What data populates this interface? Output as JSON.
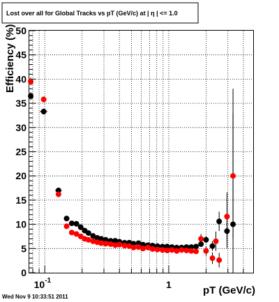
{
  "chart_data": {
    "type": "scatter",
    "title": "Lost over all for Global Tracks vs pT (GeV/c) at |  η | <= 1.0",
    "xlabel": "pT (GeV/c)",
    "ylabel": "Efficiency (%)",
    "x_scale": "log",
    "xlim": [
      0.075,
      4.8
    ],
    "ylim": [
      0,
      50
    ],
    "x_tick_labels": [
      {
        "value": 0.1,
        "base": "10",
        "exp": "-1"
      },
      {
        "value": 1,
        "base": "1",
        "exp": ""
      }
    ],
    "y_ticks": [
      0,
      5,
      10,
      15,
      20,
      25,
      30,
      35,
      40,
      45,
      50
    ],
    "grid": true,
    "series": [
      {
        "color": "#000000",
        "points": [
          {
            "x": 0.077,
            "y": 36.5,
            "xerr": 0.003,
            "yerr": 0.8
          },
          {
            "x": 0.098,
            "y": 33.3,
            "xerr": 0.007,
            "yerr": 0.6
          },
          {
            "x": 0.129,
            "y": 17.0,
            "xerr": 0.008,
            "yerr": 0.5
          },
          {
            "x": 0.15,
            "y": 11.2,
            "xerr": 0.005,
            "yerr": 0.4
          },
          {
            "x": 0.165,
            "y": 10.2,
            "xerr": 0.005,
            "yerr": 0.4
          },
          {
            "x": 0.18,
            "y": 10.1,
            "xerr": 0.005,
            "yerr": 0.4
          },
          {
            "x": 0.195,
            "y": 9.4,
            "xerr": 0.005,
            "yerr": 0.4
          },
          {
            "x": 0.21,
            "y": 8.7,
            "xerr": 0.005,
            "yerr": 0.3
          },
          {
            "x": 0.225,
            "y": 8.2,
            "xerr": 0.005,
            "yerr": 0.3
          },
          {
            "x": 0.245,
            "y": 7.6,
            "xerr": 0.006,
            "yerr": 0.3
          },
          {
            "x": 0.265,
            "y": 7.2,
            "xerr": 0.006,
            "yerr": 0.3
          },
          {
            "x": 0.285,
            "y": 7.0,
            "xerr": 0.006,
            "yerr": 0.3
          },
          {
            "x": 0.31,
            "y": 6.8,
            "xerr": 0.008,
            "yerr": 0.3
          },
          {
            "x": 0.34,
            "y": 6.6,
            "xerr": 0.008,
            "yerr": 0.3
          },
          {
            "x": 0.37,
            "y": 6.6,
            "xerr": 0.008,
            "yerr": 0.3
          },
          {
            "x": 0.4,
            "y": 6.4,
            "xerr": 0.01,
            "yerr": 0.3
          },
          {
            "x": 0.44,
            "y": 6.2,
            "xerr": 0.01,
            "yerr": 0.3
          },
          {
            "x": 0.48,
            "y": 6.2,
            "xerr": 0.01,
            "yerr": 0.3
          },
          {
            "x": 0.52,
            "y": 6.0,
            "xerr": 0.01,
            "yerr": 0.3
          },
          {
            "x": 0.57,
            "y": 6.1,
            "xerr": 0.012,
            "yerr": 0.3
          },
          {
            "x": 0.62,
            "y": 5.8,
            "xerr": 0.012,
            "yerr": 0.3
          },
          {
            "x": 0.68,
            "y": 5.7,
            "xerr": 0.014,
            "yerr": 0.3
          },
          {
            "x": 0.74,
            "y": 5.6,
            "xerr": 0.014,
            "yerr": 0.3
          },
          {
            "x": 0.81,
            "y": 5.5,
            "xerr": 0.016,
            "yerr": 0.3
          },
          {
            "x": 0.89,
            "y": 5.4,
            "xerr": 0.018,
            "yerr": 0.3
          },
          {
            "x": 0.97,
            "y": 5.4,
            "xerr": 0.02,
            "yerr": 0.3
          },
          {
            "x": 1.06,
            "y": 5.3,
            "xerr": 0.02,
            "yerr": 0.3
          },
          {
            "x": 1.16,
            "y": 5.2,
            "xerr": 0.024,
            "yerr": 0.3
          },
          {
            "x": 1.27,
            "y": 5.2,
            "xerr": 0.026,
            "yerr": 0.3
          },
          {
            "x": 1.39,
            "y": 5.3,
            "xerr": 0.03,
            "yerr": 0.3
          },
          {
            "x": 1.52,
            "y": 5.3,
            "xerr": 0.03,
            "yerr": 0.3
          },
          {
            "x": 1.66,
            "y": 5.4,
            "xerr": 0.034,
            "yerr": 0.3
          },
          {
            "x": 1.82,
            "y": 5.9,
            "xerr": 0.04,
            "yerr": 0.5
          },
          {
            "x": 2.0,
            "y": 6.8,
            "xerr": 0.05,
            "yerr": 0.7
          },
          {
            "x": 2.25,
            "y": 5.5,
            "xerr": 0.08,
            "yerr": 1.0
          },
          {
            "x": 2.55,
            "y": 10.6,
            "xerr": 0.1,
            "yerr": 2.0
          },
          {
            "x": 2.95,
            "y": 8.6,
            "xerr": 0.12,
            "yerr": 3.5
          },
          {
            "x": 3.3,
            "y": 10.0,
            "xerr": 0.12,
            "yerr": 28.0
          }
        ]
      },
      {
        "color": "#ff0000",
        "points": [
          {
            "x": 0.077,
            "y": 39.5,
            "xerr": 0.003,
            "yerr": 0.8
          },
          {
            "x": 0.098,
            "y": 35.8,
            "xerr": 0.003,
            "yerr": 0.6
          },
          {
            "x": 0.129,
            "y": 16.2,
            "xerr": 0.004,
            "yerr": 0.5
          },
          {
            "x": 0.15,
            "y": 9.6,
            "xerr": 0.004,
            "yerr": 0.4
          },
          {
            "x": 0.165,
            "y": 8.3,
            "xerr": 0.004,
            "yerr": 0.4
          },
          {
            "x": 0.18,
            "y": 8.0,
            "xerr": 0.004,
            "yerr": 0.3
          },
          {
            "x": 0.195,
            "y": 7.5,
            "xerr": 0.004,
            "yerr": 0.3
          },
          {
            "x": 0.21,
            "y": 7.0,
            "xerr": 0.004,
            "yerr": 0.3
          },
          {
            "x": 0.225,
            "y": 6.8,
            "xerr": 0.004,
            "yerr": 0.3
          },
          {
            "x": 0.245,
            "y": 6.5,
            "xerr": 0.005,
            "yerr": 0.3
          },
          {
            "x": 0.265,
            "y": 6.3,
            "xerr": 0.005,
            "yerr": 0.3
          },
          {
            "x": 0.285,
            "y": 6.1,
            "xerr": 0.005,
            "yerr": 0.3
          },
          {
            "x": 0.31,
            "y": 6.0,
            "xerr": 0.006,
            "yerr": 0.3
          },
          {
            "x": 0.34,
            "y": 5.9,
            "xerr": 0.006,
            "yerr": 0.3
          },
          {
            "x": 0.37,
            "y": 5.7,
            "xerr": 0.007,
            "yerr": 0.3
          },
          {
            "x": 0.4,
            "y": 5.8,
            "xerr": 0.008,
            "yerr": 0.3
          },
          {
            "x": 0.44,
            "y": 5.6,
            "xerr": 0.008,
            "yerr": 0.3
          },
          {
            "x": 0.48,
            "y": 5.5,
            "xerr": 0.009,
            "yerr": 0.3
          },
          {
            "x": 0.52,
            "y": 5.2,
            "xerr": 0.01,
            "yerr": 0.3
          },
          {
            "x": 0.57,
            "y": 5.3,
            "xerr": 0.011,
            "yerr": 0.3
          },
          {
            "x": 0.62,
            "y": 5.0,
            "xerr": 0.012,
            "yerr": 0.3
          },
          {
            "x": 0.68,
            "y": 5.2,
            "xerr": 0.013,
            "yerr": 0.3
          },
          {
            "x": 0.74,
            "y": 4.9,
            "xerr": 0.014,
            "yerr": 0.3
          },
          {
            "x": 0.81,
            "y": 4.8,
            "xerr": 0.015,
            "yerr": 0.3
          },
          {
            "x": 0.89,
            "y": 4.7,
            "xerr": 0.016,
            "yerr": 0.3
          },
          {
            "x": 0.97,
            "y": 4.6,
            "xerr": 0.018,
            "yerr": 0.3
          },
          {
            "x": 1.06,
            "y": 4.7,
            "xerr": 0.02,
            "yerr": 0.3
          },
          {
            "x": 1.16,
            "y": 4.5,
            "xerr": 0.022,
            "yerr": 0.3
          },
          {
            "x": 1.27,
            "y": 4.7,
            "xerr": 0.024,
            "yerr": 0.3
          },
          {
            "x": 1.39,
            "y": 4.6,
            "xerr": 0.026,
            "yerr": 0.3
          },
          {
            "x": 1.52,
            "y": 4.5,
            "xerr": 0.028,
            "yerr": 0.3
          },
          {
            "x": 1.66,
            "y": 4.4,
            "xerr": 0.032,
            "yerr": 0.4
          },
          {
            "x": 1.82,
            "y": 7.0,
            "xerr": 0.04,
            "yerr": 1.0
          },
          {
            "x": 2.0,
            "y": 4.5,
            "xerr": 0.05,
            "yerr": 1.0
          },
          {
            "x": 2.25,
            "y": 3.0,
            "xerr": 0.06,
            "yerr": 1.2
          },
          {
            "x": 2.4,
            "y": 6.5,
            "xerr": 0.06,
            "yerr": 2.0
          },
          {
            "x": 2.55,
            "y": 2.6,
            "xerr": 0.06,
            "yerr": 1.5
          },
          {
            "x": 2.95,
            "y": 11.6,
            "xerr": 0.08,
            "yerr": 5.0
          },
          {
            "x": 3.3,
            "y": 20.0,
            "xerr": 0.1,
            "yerr": 13.0
          }
        ]
      }
    ]
  },
  "footer": {
    "timestamp": "Wed Nov  9 10:33:51 2011"
  }
}
